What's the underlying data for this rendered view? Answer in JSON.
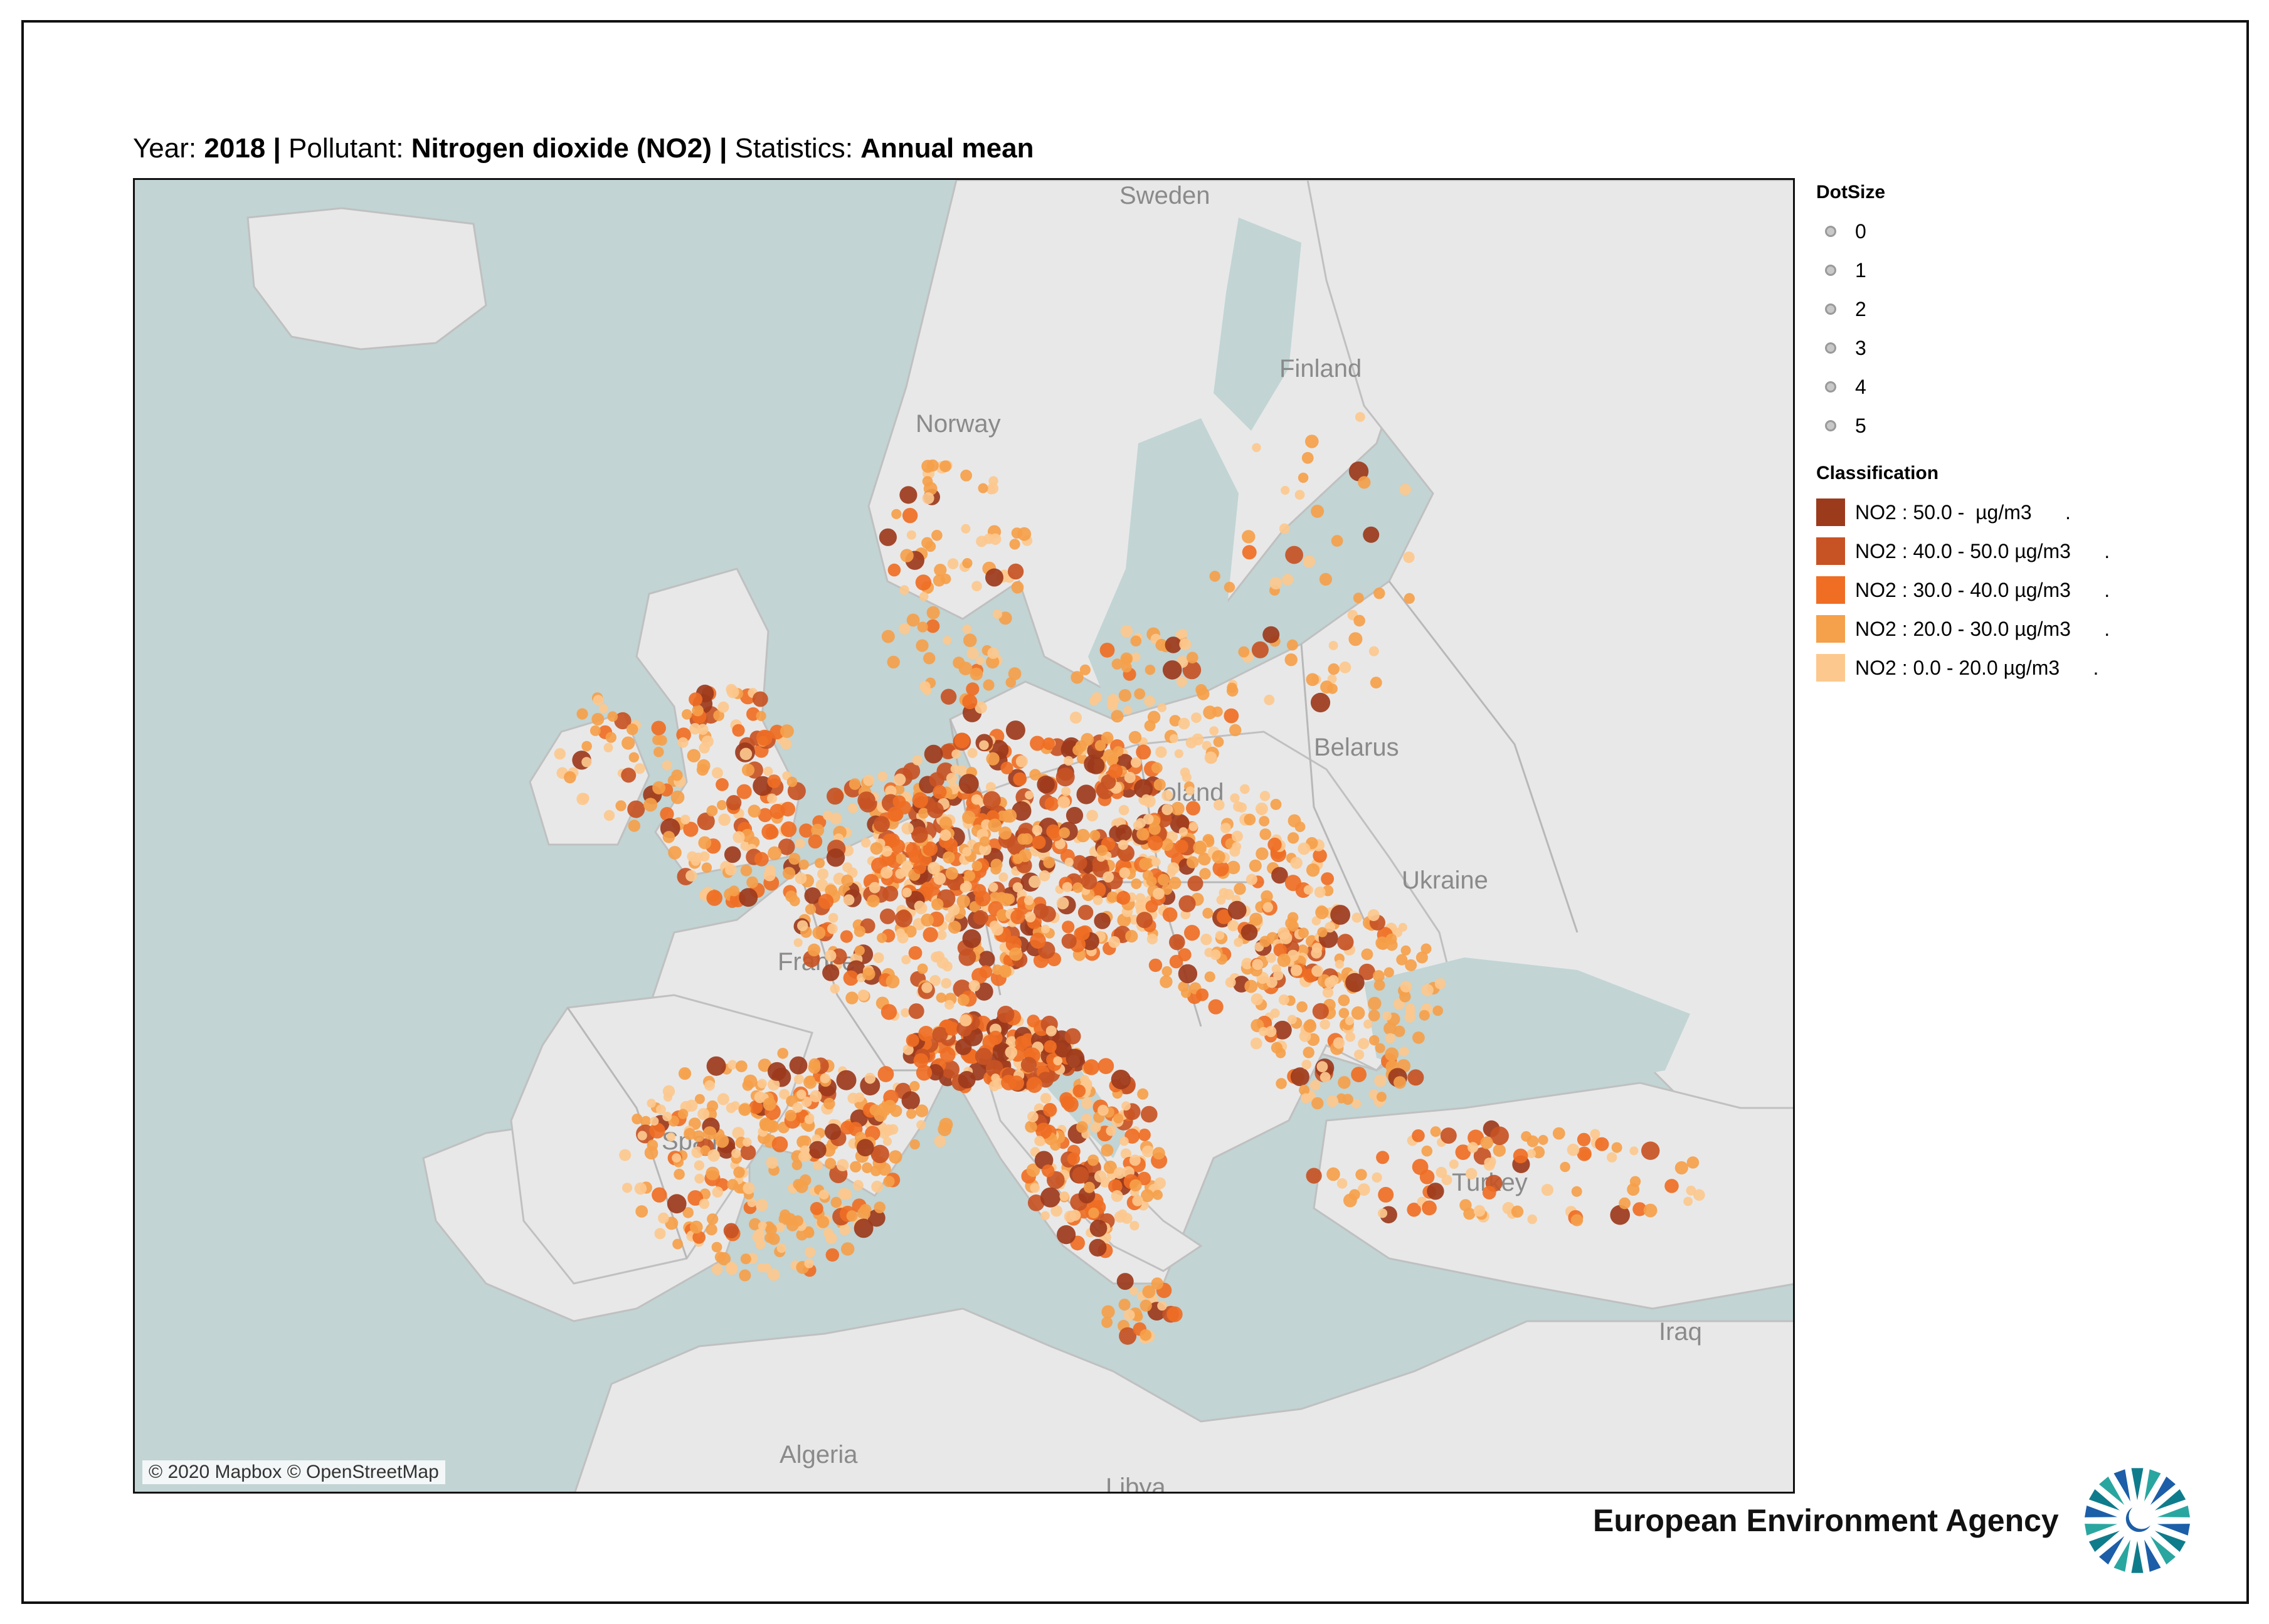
{
  "header": {
    "year_label": "Year:",
    "year_value": "2018",
    "pollutant_label": "Pollutant:",
    "pollutant_value": "Nitrogen dioxide (NO2)",
    "statistics_label": "Statistics:",
    "statistics_value": "Annual mean",
    "separator": "|"
  },
  "map": {
    "country_labels": [
      "Sweden",
      "Finland",
      "Norway",
      "Belarus",
      "Poland",
      "Ukraine",
      "France",
      "Spain",
      "Turkey",
      "Iraq",
      "Algeria",
      "Libya"
    ],
    "attribution": "© 2020 Mapbox © OpenStreetMap",
    "colors": {
      "water": "#c2d4d4",
      "land": "#e8e8e8",
      "border": "#b8b8b8"
    }
  },
  "legend": {
    "dotsize_title": "DotSize",
    "dotsize_items": [
      "0",
      "1",
      "2",
      "3",
      "4",
      "5"
    ],
    "classification_title": "Classification",
    "classes": [
      {
        "label": "NO2 : 50.0 -  µg/m3      .",
        "color": "#9c3a1c"
      },
      {
        "label": "NO2 : 40.0 - 50.0 µg/m3      .",
        "color": "#c75224"
      },
      {
        "label": "NO2 : 30.0 - 40.0 µg/m3      .",
        "color": "#ef6e24"
      },
      {
        "label": "NO2 : 20.0 - 30.0 µg/m3      .",
        "color": "#f5a04a"
      },
      {
        "label": "NO2 : 0.0 - 20.0 µg/m3      .",
        "color": "#fcc88e"
      }
    ]
  },
  "footer": {
    "agency_name": "European Environment Agency",
    "logo_colors": [
      "#0f7c8c",
      "#2aa6a0",
      "#1c5ea8"
    ]
  }
}
